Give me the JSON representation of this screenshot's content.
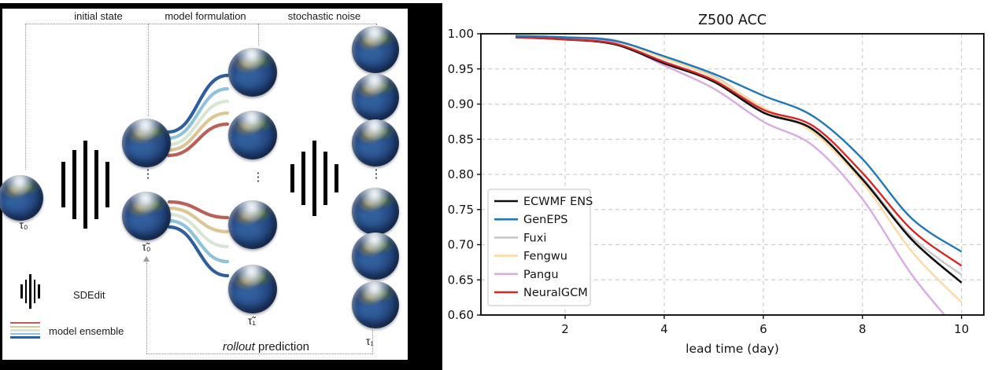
{
  "diagram": {
    "section_labels": [
      "initial state",
      "model formulation",
      "stochastic noise"
    ],
    "labels": {
      "tau0": "τ₀",
      "tau0_tilde": "τ̃₀",
      "tau1_tilde": "τ̃₁",
      "tau1": "τ₁",
      "sdedit": "SDEdit",
      "model_ensemble": "model ensemble",
      "rollout_italic": "rollout",
      "rollout_rest": " prediction",
      "ellipsis": "⋮"
    },
    "ensemble_colors": [
      "#2e5e9e",
      "#8fc3dc",
      "#d9e6d5",
      "#dbc795",
      "#bb6058"
    ]
  },
  "chart_data": {
    "type": "line",
    "title": "Z500 ACC",
    "xlabel": "lead time (day)",
    "ylabel": "",
    "x": [
      1,
      2,
      3,
      4,
      5,
      6,
      7,
      8,
      9,
      10
    ],
    "xticks": [
      2,
      4,
      6,
      8,
      10
    ],
    "yticks": [
      0.6,
      0.65,
      0.7,
      0.75,
      0.8,
      0.85,
      0.9,
      0.95,
      1.0
    ],
    "xlim": [
      0.3,
      10.45
    ],
    "ylim": [
      0.6,
      1.0
    ],
    "grid": true,
    "legend_position": "lower left",
    "series": [
      {
        "name": "ECWMF ENS",
        "color": "#111111",
        "values": [
          0.995,
          0.992,
          0.985,
          0.958,
          0.932,
          0.888,
          0.864,
          0.793,
          0.707,
          0.646
        ]
      },
      {
        "name": "GenEPS",
        "color": "#1f77b4",
        "values": [
          0.997,
          0.995,
          0.99,
          0.968,
          0.943,
          0.912,
          0.883,
          0.822,
          0.737,
          0.69
        ]
      },
      {
        "name": "Fuxi",
        "color": "#c7c7c7",
        "values": [
          0.997,
          0.995,
          0.991,
          0.966,
          0.94,
          0.893,
          0.862,
          0.795,
          0.711,
          0.657
        ]
      },
      {
        "name": "Fengwu",
        "color": "#ffd9a3",
        "values": [
          0.997,
          0.994,
          0.989,
          0.965,
          0.938,
          0.895,
          0.86,
          0.789,
          0.69,
          0.618
        ]
      },
      {
        "name": "Pangu",
        "color": "#d8abe3",
        "values": [
          0.996,
          0.993,
          0.987,
          0.955,
          0.922,
          0.875,
          0.841,
          0.765,
          0.657,
          0.572
        ]
      },
      {
        "name": "NeuralGCM",
        "color": "#d62728",
        "values": [
          0.995,
          0.992,
          0.986,
          0.96,
          0.934,
          0.892,
          0.869,
          0.802,
          0.721,
          0.67
        ]
      }
    ]
  }
}
